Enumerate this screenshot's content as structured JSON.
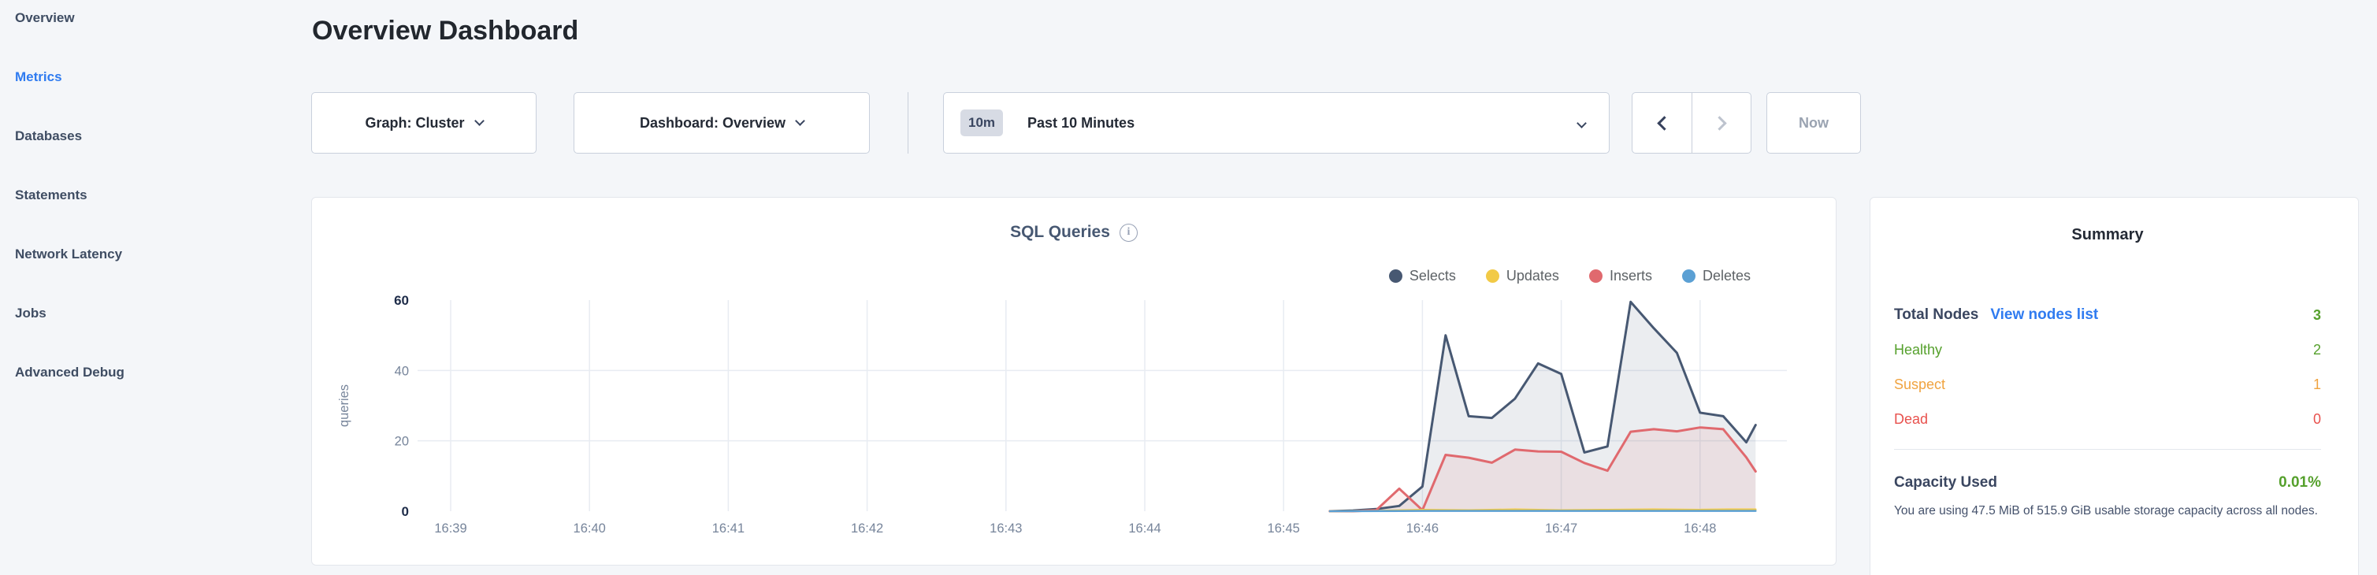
{
  "sidebar": {
    "items": [
      {
        "label": "Overview",
        "active": false
      },
      {
        "label": "Metrics",
        "active": true
      },
      {
        "label": "Databases",
        "active": false
      },
      {
        "label": "Statements",
        "active": false
      },
      {
        "label": "Network Latency",
        "active": false
      },
      {
        "label": "Jobs",
        "active": false
      },
      {
        "label": "Advanced Debug",
        "active": false
      }
    ]
  },
  "header": {
    "title": "Overview Dashboard"
  },
  "controls": {
    "graph_dropdown": {
      "label": "Graph: Cluster"
    },
    "dashboard_dropdown": {
      "label": "Dashboard: Overview"
    },
    "time_selector": {
      "badge": "10m",
      "value": "Past 10 Minutes"
    },
    "now_label": "Now"
  },
  "chart_data": {
    "type": "area",
    "title": "SQL Queries",
    "ylabel": "queries",
    "ylim": [
      0,
      60
    ],
    "yticks": [
      0,
      20,
      40,
      60
    ],
    "grid": true,
    "legend_position": "top-right",
    "x_ticks": [
      {
        "t": 0,
        "label": "16:39"
      },
      {
        "t": 1,
        "label": "16:40"
      },
      {
        "t": 2,
        "label": "16:41"
      },
      {
        "t": 3,
        "label": "16:42"
      },
      {
        "t": 4,
        "label": "16:43"
      },
      {
        "t": 5,
        "label": "16:44"
      },
      {
        "t": 6,
        "label": "16:45"
      },
      {
        "t": 7,
        "label": "16:46"
      },
      {
        "t": 8,
        "label": "16:47"
      },
      {
        "t": 9,
        "label": "16:48"
      }
    ],
    "series": [
      {
        "name": "Selects",
        "color": "#475872",
        "fill": "rgba(71,88,114,0.11)",
        "width": 3,
        "points": [
          [
            6.333,
            0
          ],
          [
            6.5,
            0.2
          ],
          [
            6.667,
            0.6
          ],
          [
            6.833,
            1.5
          ],
          [
            7.0,
            7
          ],
          [
            7.167,
            50
          ],
          [
            7.333,
            27
          ],
          [
            7.5,
            26.5
          ],
          [
            7.667,
            32
          ],
          [
            7.833,
            42
          ],
          [
            8.0,
            39
          ],
          [
            8.167,
            16.7
          ],
          [
            8.333,
            18.4
          ],
          [
            8.5,
            59.5
          ],
          [
            8.667,
            52
          ],
          [
            8.833,
            45
          ],
          [
            9.0,
            28
          ],
          [
            9.167,
            27
          ],
          [
            9.333,
            19.6
          ],
          [
            9.4,
            24.5
          ]
        ]
      },
      {
        "name": "Inserts",
        "color": "#e0696e",
        "fill": "rgba(224,105,110,0.10)",
        "width": 3,
        "points": [
          [
            6.333,
            0
          ],
          [
            6.5,
            0
          ],
          [
            6.667,
            0.3
          ],
          [
            6.833,
            6.4
          ],
          [
            7.0,
            0.3
          ],
          [
            7.167,
            16
          ],
          [
            7.333,
            15.2
          ],
          [
            7.5,
            13.8
          ],
          [
            7.667,
            17.5
          ],
          [
            7.833,
            17
          ],
          [
            8.0,
            16.9
          ],
          [
            8.167,
            13.7
          ],
          [
            8.333,
            11.5
          ],
          [
            8.5,
            22.6
          ],
          [
            8.667,
            23.3
          ],
          [
            8.833,
            22.7
          ],
          [
            9.0,
            23.8
          ],
          [
            9.167,
            23.3
          ],
          [
            9.333,
            15.3
          ],
          [
            9.4,
            11.3
          ]
        ]
      },
      {
        "name": "Updates",
        "color": "#f2ca46",
        "fill": "none",
        "width": 2.5,
        "points": [
          [
            6.333,
            0
          ],
          [
            6.667,
            0.1
          ],
          [
            7.0,
            0.4
          ],
          [
            7.333,
            0.3
          ],
          [
            7.667,
            0.5
          ],
          [
            8.0,
            0.3
          ],
          [
            8.333,
            0.4
          ],
          [
            8.667,
            0.5
          ],
          [
            9.0,
            0.4
          ],
          [
            9.2,
            0.5
          ],
          [
            9.4,
            0.5
          ]
        ]
      },
      {
        "name": "Deletes",
        "color": "#5ba0d4",
        "fill": "none",
        "width": 2.5,
        "points": [
          [
            6.333,
            0
          ],
          [
            7.0,
            0.1
          ],
          [
            8.0,
            0.1
          ],
          [
            9.0,
            0.1
          ],
          [
            9.4,
            0.1
          ]
        ]
      }
    ],
    "legend": [
      {
        "name": "Selects",
        "color": "#475872"
      },
      {
        "name": "Updates",
        "color": "#f2ca46"
      },
      {
        "name": "Inserts",
        "color": "#e0696e"
      },
      {
        "name": "Deletes",
        "color": "#5ba0d4"
      }
    ]
  },
  "summary": {
    "title": "Summary",
    "rows": [
      {
        "label": "Total Nodes",
        "bold": true,
        "link": "View nodes list",
        "value": "3",
        "label_color": "#3a4660",
        "value_color": "#55a02c"
      },
      {
        "label": "Healthy",
        "bold": false,
        "link": null,
        "value": "2",
        "label_color": "#55a02c",
        "value_color": "#55a02c"
      },
      {
        "label": "Suspect",
        "bold": false,
        "link": null,
        "value": "1",
        "label_color": "#f0a33f",
        "value_color": "#f0a33f"
      },
      {
        "label": "Dead",
        "bold": false,
        "link": null,
        "value": "0",
        "label_color": "#e8514d",
        "value_color": "#e8514d"
      }
    ],
    "capacity": {
      "label": "Capacity Used",
      "value": "0.01%",
      "value_color": "#55a02c",
      "description": "You are using 47.5 MiB of 515.9 GiB usable storage capacity across all nodes."
    }
  },
  "colors": {
    "accent_blue": "#2f7bf0",
    "slate": "#475872",
    "tick_dark": "#1e2c49",
    "tick_gray": "#76849a",
    "gridline": "#e8ecf2",
    "background": "#f4f6f9"
  }
}
